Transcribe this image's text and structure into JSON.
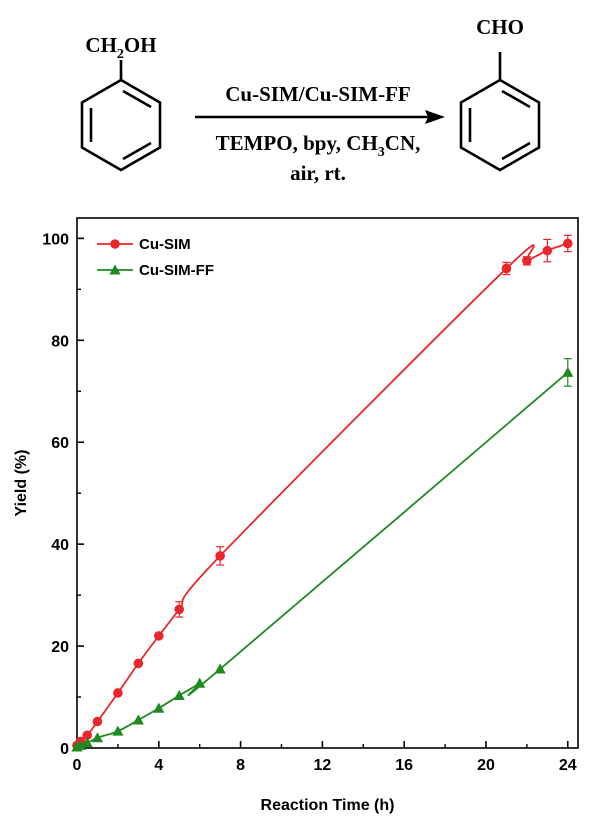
{
  "scheme": {
    "reactant_group": [
      "CH",
      "2",
      "OH"
    ],
    "product_group": "CHO",
    "catalyst": "Cu-SIM/Cu-SIM-FF",
    "conditions_line1": [
      "TEMPO, bpy, CH",
      "3",
      "CN,"
    ],
    "conditions_line2": "air, rt."
  },
  "chart_data": {
    "type": "line",
    "title": "",
    "xlabel": "Reaction Time (h)",
    "ylabel": "Yield (%)",
    "xlim": [
      0,
      24.5
    ],
    "ylim": [
      0,
      104
    ],
    "xticks": [
      0,
      4,
      8,
      12,
      16,
      20,
      24
    ],
    "yticks": [
      0,
      20,
      40,
      60,
      80,
      100
    ],
    "grid": false,
    "legend_position": "top-left",
    "series": [
      {
        "name": "Cu-SIM",
        "color": "#e8262b",
        "marker": "circle",
        "x": [
          0,
          0.17,
          0.5,
          1,
          2,
          3,
          4,
          5,
          7,
          21,
          22,
          23,
          24
        ],
        "y": [
          0.5,
          1.3,
          2.5,
          5.2,
          10.8,
          16.6,
          22.0,
          27.2,
          37.7,
          94.1,
          95.6,
          97.6,
          99.0
        ],
        "err": [
          0,
          0,
          0,
          0,
          0,
          0,
          0,
          1.5,
          1.8,
          1.2,
          0.8,
          2.2,
          1.6
        ]
      },
      {
        "name": "Cu-SIM-FF",
        "color": "#1f8a1f",
        "marker": "triangle",
        "x": [
          0,
          0.17,
          0.5,
          1,
          2,
          3,
          4,
          5,
          6,
          7,
          24
        ],
        "y": [
          0.2,
          0.5,
          1.0,
          2.0,
          3.3,
          5.5,
          7.8,
          10.3,
          12.7,
          15.5,
          73.7
        ],
        "err": [
          0,
          0,
          0,
          0,
          0,
          0,
          0,
          0,
          0,
          0,
          2.7
        ]
      }
    ]
  }
}
